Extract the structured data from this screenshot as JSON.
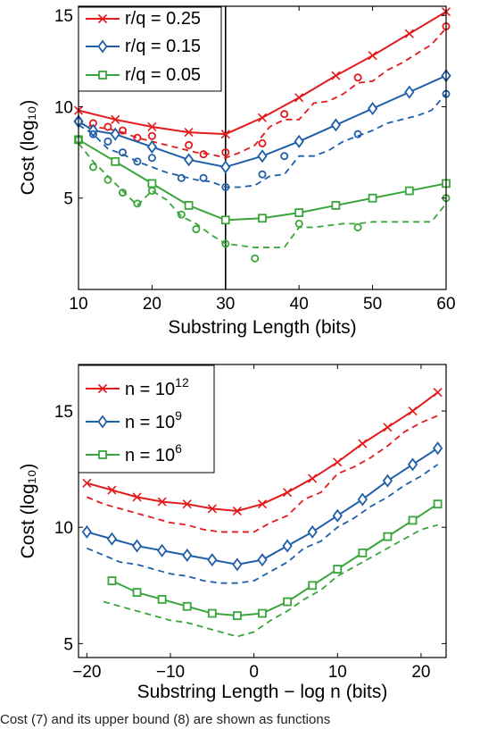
{
  "chart_data": [
    {
      "type": "line",
      "xlabel": "Substring Length (bits)",
      "ylabel": "Cost (log₁₀)",
      "xlim": [
        10,
        60
      ],
      "ylim": [
        0,
        15.5
      ],
      "xticks": [
        10,
        20,
        30,
        40,
        50,
        60
      ],
      "yticks": [
        5,
        10,
        15
      ],
      "grid": false,
      "legend_position": "top-left",
      "vline": 30,
      "series": [
        {
          "name": "r/q = 0.25",
          "color": "#e31a1c",
          "marker": "x",
          "x": [
            10,
            15,
            20,
            25,
            30,
            35,
            40,
            45,
            50,
            55,
            60
          ],
          "values": [
            9.8,
            9.3,
            8.9,
            8.6,
            8.5,
            9.4,
            10.5,
            11.7,
            12.8,
            14.0,
            15.2
          ],
          "dashed_x": [
            10,
            12,
            14,
            16,
            18,
            20,
            22,
            24,
            26,
            28,
            30,
            32,
            34,
            36,
            38,
            40,
            42,
            44,
            46,
            48,
            50,
            52,
            54,
            56,
            58,
            60
          ],
          "dashed": [
            9.1,
            8.9,
            8.8,
            8.6,
            8.3,
            8.1,
            7.9,
            7.7,
            7.5,
            7.4,
            7.2,
            7.5,
            7.9,
            8.9,
            9.3,
            9.3,
            10.2,
            10.3,
            10.7,
            11.3,
            11.4,
            12.0,
            12.4,
            12.9,
            13.4,
            14.3
          ],
          "circles_x": [
            10,
            12,
            14,
            16,
            18,
            20,
            25,
            27,
            30,
            35,
            38,
            48,
            60
          ],
          "circles": [
            9.2,
            9.1,
            8.9,
            8.7,
            8.3,
            8.4,
            7.9,
            7.4,
            7.5,
            8.0,
            9.6,
            11.6,
            14.4
          ]
        },
        {
          "name": "r/q = 0.15",
          "color": "#1f5fa8",
          "marker": "diamond",
          "x": [
            10,
            12,
            15,
            20,
            25,
            30,
            35,
            40,
            45,
            50,
            55,
            60
          ],
          "values": [
            9.2,
            8.7,
            8.5,
            7.8,
            7.1,
            6.7,
            7.3,
            8.1,
            9.0,
            9.9,
            10.8,
            11.7
          ],
          "dashed_x": [
            10,
            12,
            14,
            16,
            18,
            20,
            22,
            24,
            26,
            28,
            30,
            32,
            34,
            36,
            38,
            40,
            42,
            44,
            46,
            48,
            50,
            52,
            54,
            56,
            58,
            60
          ],
          "dashed": [
            9.0,
            8.5,
            7.7,
            7.4,
            7.0,
            6.7,
            6.4,
            6.2,
            6.0,
            5.9,
            5.6,
            5.6,
            5.7,
            6.2,
            6.3,
            7.3,
            7.3,
            7.6,
            8.1,
            8.4,
            8.7,
            9.1,
            9.3,
            9.5,
            9.8,
            10.7
          ],
          "circles_x": [
            10,
            12,
            14,
            16,
            18,
            20,
            24,
            27,
            30,
            35,
            38,
            48,
            60
          ],
          "circles": [
            9.2,
            8.5,
            8.1,
            7.5,
            7.0,
            7.2,
            6.1,
            6.1,
            5.6,
            6.3,
            7.3,
            8.5,
            10.7
          ]
        },
        {
          "name": "r/q = 0.05",
          "color": "#3aa53a",
          "marker": "square",
          "x": [
            10,
            15,
            20,
            25,
            30,
            35,
            40,
            45,
            50,
            55,
            60
          ],
          "values": [
            8.2,
            7.0,
            5.8,
            4.6,
            3.8,
            3.9,
            4.2,
            4.6,
            5.0,
            5.4,
            5.8
          ],
          "dashed_x": [
            10,
            12,
            14,
            16,
            18,
            20,
            22,
            24,
            26,
            28,
            30,
            32,
            34,
            36,
            38,
            40,
            42,
            44,
            46,
            48,
            50,
            52,
            54,
            56,
            58,
            60
          ],
          "dashed": [
            8.0,
            7.0,
            6.2,
            5.4,
            4.6,
            5.4,
            4.9,
            4.0,
            3.6,
            3.0,
            2.5,
            2.4,
            2.3,
            2.3,
            2.3,
            3.4,
            3.4,
            3.5,
            3.6,
            3.6,
            3.7,
            3.7,
            3.7,
            3.7,
            3.7,
            4.7
          ],
          "circles_x": [
            10,
            12,
            14,
            16,
            18,
            20,
            24,
            26,
            30,
            34,
            40,
            48,
            60
          ],
          "circles": [
            8.2,
            6.7,
            6.0,
            5.3,
            4.7,
            5.4,
            4.1,
            3.3,
            2.5,
            1.7,
            3.6,
            3.4,
            5.0
          ]
        }
      ]
    },
    {
      "type": "line",
      "xlabel": "Substring Length − log n (bits)",
      "ylabel": "Cost (log₁₀)",
      "xlim": [
        -21,
        23
      ],
      "ylim": [
        4.4,
        17
      ],
      "xticks": [
        -20,
        -10,
        0,
        10,
        20
      ],
      "yticks": [
        5,
        10,
        15
      ],
      "grid": false,
      "legend_position": "top-left",
      "series": [
        {
          "name_base": "n = 10",
          "name_exp": "12",
          "color": "#e31a1c",
          "marker": "x",
          "x": [
            -20,
            -17,
            -14,
            -11,
            -8,
            -5,
            -2,
            1,
            4,
            7,
            10,
            13,
            16,
            19,
            22
          ],
          "values": [
            11.9,
            11.6,
            11.3,
            11.1,
            11.0,
            10.8,
            10.7,
            11.0,
            11.5,
            12.1,
            12.8,
            13.6,
            14.3,
            15.0,
            15.8
          ],
          "dashed_x": [
            -20,
            -18,
            -16,
            -14,
            -12,
            -10,
            -8,
            -6,
            -4,
            -2,
            0,
            2,
            4,
            6,
            8,
            10,
            12,
            14,
            16,
            18,
            20,
            22
          ],
          "dashed": [
            11.3,
            11.0,
            10.8,
            10.6,
            10.4,
            10.2,
            10.1,
            9.9,
            9.8,
            9.8,
            9.8,
            10.2,
            10.5,
            11.2,
            11.5,
            12.3,
            12.6,
            13.0,
            13.5,
            14.1,
            14.5,
            14.8
          ]
        },
        {
          "name_base": "n = 10",
          "name_exp": "9",
          "color": "#1f5fa8",
          "marker": "diamond",
          "x": [
            -20,
            -17,
            -14,
            -11,
            -8,
            -5,
            -2,
            1,
            4,
            7,
            10,
            13,
            16,
            19,
            22
          ],
          "values": [
            9.8,
            9.5,
            9.2,
            9.0,
            8.8,
            8.6,
            8.4,
            8.6,
            9.2,
            9.8,
            10.5,
            11.2,
            12.0,
            12.7,
            13.4
          ],
          "dashed_x": [
            -20,
            -18,
            -16,
            -14,
            -12,
            -10,
            -8,
            -6,
            -4,
            -2,
            0,
            2,
            4,
            6,
            8,
            10,
            12,
            14,
            16,
            18,
            20,
            22
          ],
          "dashed": [
            9.1,
            8.8,
            8.5,
            8.4,
            8.2,
            8.0,
            7.9,
            7.7,
            7.6,
            7.6,
            7.7,
            8.1,
            8.5,
            9.1,
            9.4,
            10.0,
            10.4,
            10.9,
            11.3,
            11.8,
            12.2,
            12.7
          ]
        },
        {
          "name_base": "n = 10",
          "name_exp": "6",
          "color": "#3aa53a",
          "marker": "square",
          "x": [
            -17,
            -14,
            -11,
            -8,
            -5,
            -2,
            1,
            4,
            7,
            10,
            13,
            16,
            19,
            22
          ],
          "values": [
            7.7,
            7.2,
            6.9,
            6.6,
            6.3,
            6.2,
            6.3,
            6.8,
            7.5,
            8.2,
            8.9,
            9.6,
            10.3,
            11.0
          ],
          "dashed_x": [
            -18,
            -16,
            -14,
            -12,
            -10,
            -8,
            -6,
            -4,
            -2,
            0,
            2,
            4,
            6,
            8,
            10,
            12,
            14,
            16,
            18,
            20,
            22
          ],
          "dashed": [
            6.8,
            6.6,
            6.4,
            6.2,
            6.0,
            5.9,
            5.7,
            5.5,
            5.3,
            5.5,
            6.0,
            6.4,
            6.9,
            7.3,
            7.9,
            8.3,
            8.7,
            9.1,
            9.5,
            9.9,
            10.1
          ]
        }
      ]
    }
  ],
  "caption": "Cost (7) and its upper bound (8) are shown as functions"
}
